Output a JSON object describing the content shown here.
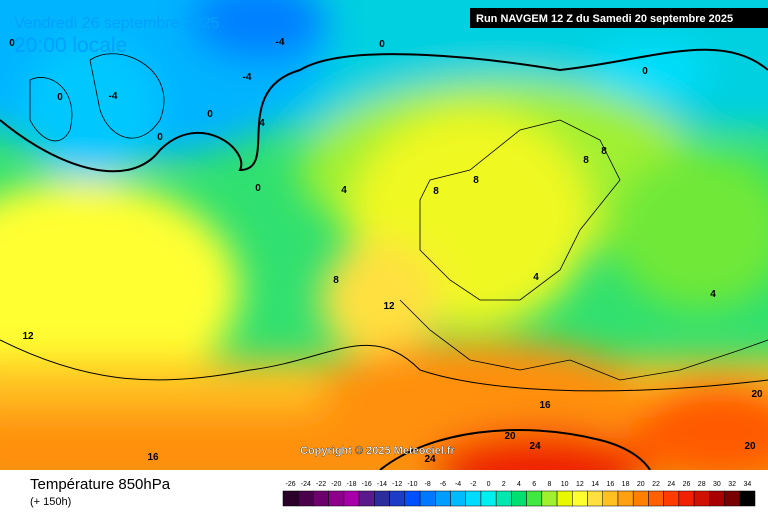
{
  "header": {
    "date": "Vendredi 26 septembre 2025",
    "time": "20:00 locale",
    "run": "Run NAVGEM 12 Z du Samedi 20 septembre 2025"
  },
  "copyright": "Copyright © 2025 Meteociel.fr",
  "legend": {
    "title": "Température 850hPa",
    "subtitle": "(+ 150h)",
    "scale": [
      -26,
      -24,
      -22,
      -20,
      -18,
      -16,
      -14,
      -12,
      -10,
      -8,
      -6,
      -4,
      -2,
      0,
      2,
      4,
      6,
      8,
      10,
      12,
      14,
      16,
      18,
      20,
      22,
      24,
      26,
      28,
      30,
      32,
      34
    ],
    "colors": [
      "#2a002a",
      "#4b004b",
      "#6e006e",
      "#8c008c",
      "#a800a8",
      "#5a1a8c",
      "#2c2c9c",
      "#1c3cc8",
      "#0050ff",
      "#0078ff",
      "#009cff",
      "#00bcff",
      "#00dcff",
      "#00f0f0",
      "#00e8b0",
      "#00e070",
      "#40e840",
      "#a0f030",
      "#e8f800",
      "#ffff30",
      "#ffe040",
      "#ffc020",
      "#ffa010",
      "#ff8000",
      "#ff6000",
      "#ff3c00",
      "#f02000",
      "#d01000",
      "#a80000",
      "#780000",
      "#000000"
    ]
  },
  "contour_labels": [
    0,
    -4,
    0,
    -4,
    0,
    -4,
    0,
    0,
    4,
    0,
    4,
    8,
    8,
    8,
    8,
    0,
    4,
    4,
    8,
    12,
    12,
    16,
    20,
    24,
    24,
    16,
    20,
    20
  ]
}
